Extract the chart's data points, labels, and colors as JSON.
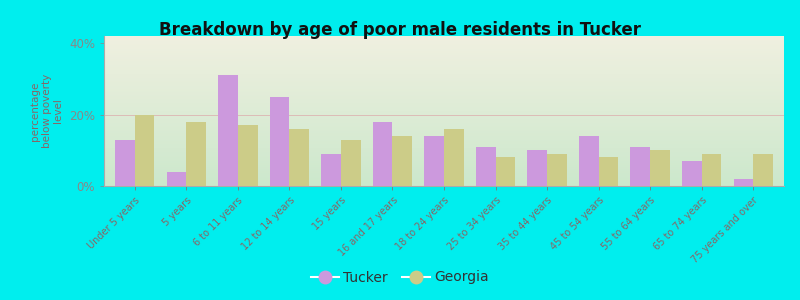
{
  "title": "Breakdown by age of poor male residents in Tucker",
  "ylabel": "percentage\nbelow poverty\nlevel",
  "categories": [
    "Under 5 years",
    "5 years",
    "6 to 11 years",
    "12 to 14 years",
    "15 years",
    "16 and 17 years",
    "18 to 24 years",
    "25 to 34 years",
    "35 to 44 years",
    "45 to 54 years",
    "55 to 64 years",
    "65 to 74 years",
    "75 years and over"
  ],
  "tucker": [
    13,
    4,
    31,
    25,
    9,
    18,
    14,
    11,
    10,
    14,
    11,
    7,
    2
  ],
  "georgia": [
    20,
    18,
    17,
    16,
    13,
    14,
    16,
    8,
    9,
    8,
    10,
    9,
    9
  ],
  "tucker_color": "#cc99dd",
  "georgia_color": "#cccc88",
  "bg_color": "#00eeee",
  "plot_bg_top": "#f0f0e0",
  "plot_bg_bottom": "#cce8cc",
  "ylim": [
    0,
    42
  ],
  "yticks": [
    0,
    20,
    40
  ],
  "ytick_labels": [
    "0%",
    "20%",
    "40%"
  ],
  "bar_width": 0.38,
  "legend_tucker": "Tucker",
  "legend_georgia": "Georgia",
  "axis_color": "#888888",
  "tick_label_color": "#886666",
  "ylabel_color": "#886666",
  "title_color": "#111111"
}
